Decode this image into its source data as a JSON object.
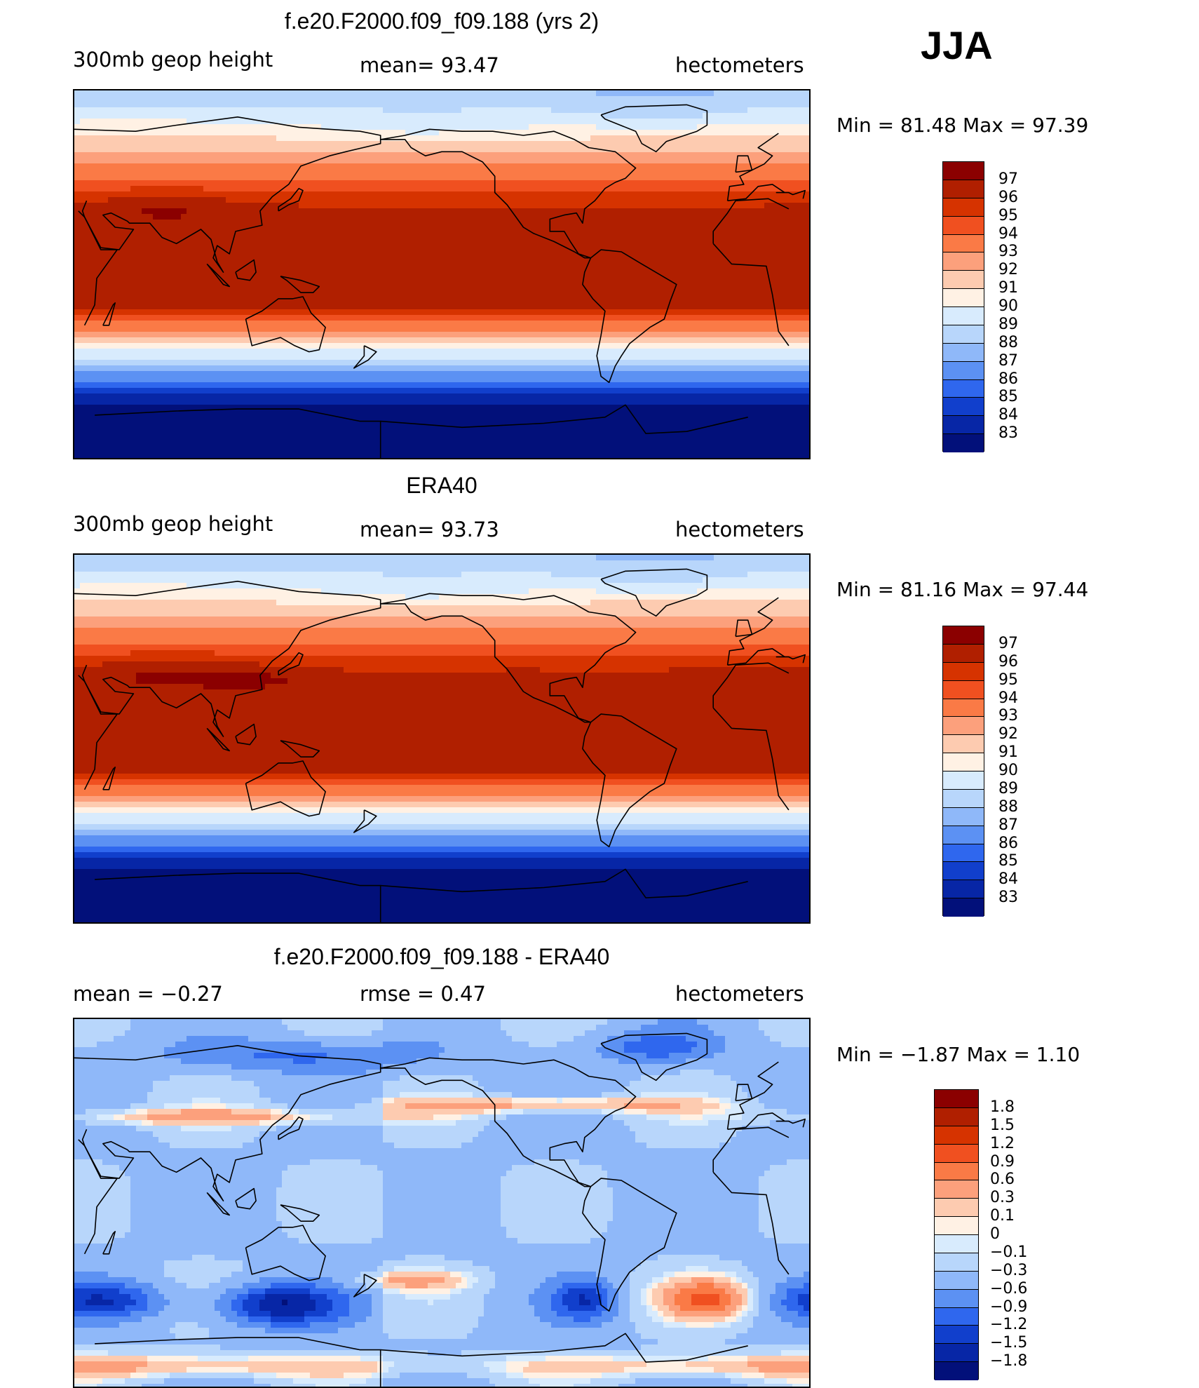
{
  "season": "JJA",
  "panels": [
    {
      "title": "f.e20.F2000.f09_f09.188 (yrs 2)",
      "left_label": "300mb  geop  height",
      "mid_label": "mean=   93.47",
      "units": "hectometers",
      "minmax": "Min  =    81.48  Max  =    97.39",
      "colorbar": {
        "labels": [
          "97",
          "96",
          "95",
          "94",
          "93",
          "92",
          "91",
          "90",
          "89",
          "88",
          "87",
          "86",
          "85",
          "84",
          "83"
        ],
        "colors": [
          "#8b0000",
          "#b01f00",
          "#d63300",
          "#f05020",
          "#fa7a46",
          "#fca07c",
          "#fdcbb0",
          "#fff1e4",
          "#d8ebfd",
          "#b8d6fb",
          "#8fb8f9",
          "#5c91f3",
          "#2f67ee",
          "#113fcc",
          "#0726a6",
          "#02107a"
        ]
      },
      "field": "z300_model"
    },
    {
      "title": "ERA40",
      "left_label": "300mb  geop  height",
      "mid_label": "mean=   93.73",
      "units": "hectometers",
      "minmax": "Min  =    81.16  Max  =    97.44",
      "colorbar": {
        "labels": [
          "97",
          "96",
          "95",
          "94",
          "93",
          "92",
          "91",
          "90",
          "89",
          "88",
          "87",
          "86",
          "85",
          "84",
          "83"
        ],
        "colors": [
          "#8b0000",
          "#b01f00",
          "#d63300",
          "#f05020",
          "#fa7a46",
          "#fca07c",
          "#fdcbb0",
          "#fff1e4",
          "#d8ebfd",
          "#b8d6fb",
          "#8fb8f9",
          "#5c91f3",
          "#2f67ee",
          "#113fcc",
          "#0726a6",
          "#02107a"
        ]
      },
      "field": "z300_obs"
    },
    {
      "title": "f.e20.F2000.f09_f09.188 - ERA40",
      "left_label": "mean  =    −0.27",
      "mid_label": "rmse  =     0.47",
      "units": "hectometers",
      "minmax": "Min  =    −1.87  Max  =      1.10",
      "colorbar": {
        "labels": [
          "1.8",
          "1.5",
          "1.2",
          "0.9",
          "0.6",
          "0.3",
          "0.1",
          "0",
          "−0.1",
          "−0.3",
          "−0.6",
          "−0.9",
          "−1.2",
          "−1.5",
          "−1.8"
        ],
        "colors": [
          "#8b0000",
          "#b01f00",
          "#d63300",
          "#f05020",
          "#fa7a46",
          "#fca07c",
          "#fdcbb0",
          "#fff1e4",
          "#d8ebfd",
          "#b8d6fb",
          "#8fb8f9",
          "#5c91f3",
          "#2f67ee",
          "#113fcc",
          "#0726a6",
          "#02107a"
        ]
      },
      "field": "z300_diff"
    }
  ]
}
